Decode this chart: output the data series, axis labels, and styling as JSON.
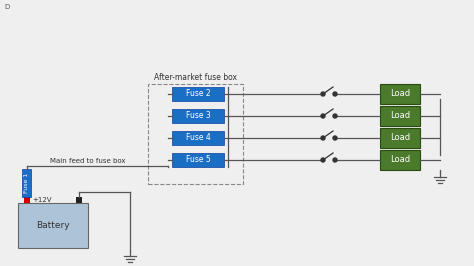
{
  "bg_color": "#efefef",
  "title": "D",
  "fuse_box_label": "After-market fuse box",
  "main_feed_label": "Main feed to fuse box",
  "v12_label": "+12V",
  "battery_label": "Battery",
  "fuse_labels": [
    "Fuse 2",
    "Fuse 3",
    "Fuse 4",
    "Fuse 5"
  ],
  "fuse1_label": "Fuse 1",
  "load_label": "Load",
  "fuse_color": "#1a6fc4",
  "fuse_text_color": "#ffffff",
  "load_color": "#4a7a2a",
  "load_text_color": "#ffffff",
  "battery_color": "#adc4d8",
  "battery_border": "#666666",
  "wire_color": "#555555",
  "dashed_border_color": "#888888",
  "pos_terminal_color": "#cc0000",
  "neg_terminal_color": "#222222",
  "fig_width": 4.74,
  "fig_height": 2.66,
  "dpi": 100
}
